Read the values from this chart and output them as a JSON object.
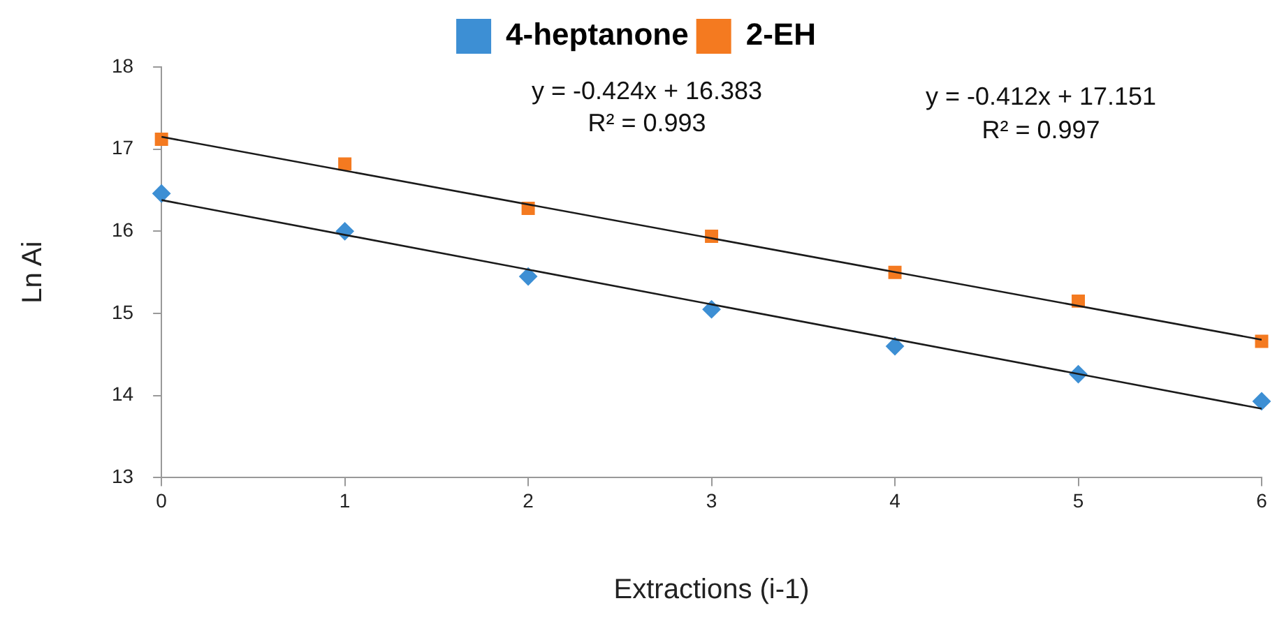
{
  "chart_data": {
    "type": "scatter",
    "xlabel": "Extractions (i-1)",
    "ylabel": "Ln Ai",
    "xlim": [
      0,
      6
    ],
    "xticks": [
      0,
      1,
      2,
      3,
      4,
      5,
      6
    ],
    "ylim": [
      13,
      18
    ],
    "yticks": [
      13,
      14,
      15,
      16,
      17,
      18
    ],
    "grid": false,
    "legend": "top",
    "series": [
      {
        "name": "4-heptanone",
        "color": "#3d8fd4",
        "marker": "diamond",
        "x": [
          0,
          1,
          2,
          3,
          4,
          5,
          6
        ],
        "values": [
          16.46,
          16.0,
          15.45,
          15.05,
          14.6,
          14.26,
          13.93
        ]
      },
      {
        "name": "2-EH",
        "color": "#f47a20",
        "marker": "square",
        "x": [
          0,
          1,
          2,
          3,
          4,
          5,
          6
        ],
        "values": [
          17.12,
          16.82,
          16.28,
          15.94,
          15.5,
          15.15,
          14.66
        ]
      },
      {
        "type": "line",
        "color": "#1a1a1a",
        "marker": "none",
        "x": [
          0,
          6
        ],
        "values": [
          16.38,
          13.84
        ]
      },
      {
        "type": "line",
        "color": "#1a1a1a",
        "marker": "none",
        "x": [
          0,
          6
        ],
        "values": [
          17.15,
          14.68
        ]
      }
    ],
    "annotations": [
      "y = -0.424x + 16.383",
      "R² = 0.993",
      "y = -0.412x + 17.151",
      "R² = 0.997"
    ]
  }
}
